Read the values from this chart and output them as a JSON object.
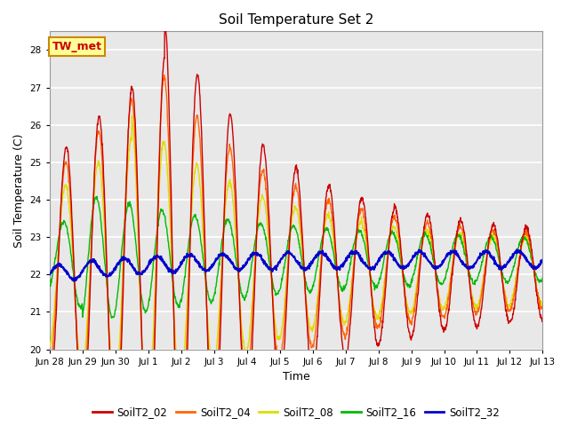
{
  "title": "Soil Temperature Set 2",
  "xlabel": "Time",
  "ylabel": "Soil Temperature (C)",
  "ylim": [
    20.0,
    28.5
  ],
  "yticks": [
    20.0,
    21.0,
    22.0,
    23.0,
    24.0,
    25.0,
    26.0,
    27.0,
    28.0
  ],
  "bg_color": "#e8e8e8",
  "grid_color": "#ffffff",
  "series_colors": {
    "SoilT2_02": "#cc0000",
    "SoilT2_04": "#ff6600",
    "SoilT2_08": "#dddd00",
    "SoilT2_16": "#00bb00",
    "SoilT2_32": "#0000cc"
  },
  "annotation_text": "TW_met",
  "annotation_bg": "#ffff99",
  "annotation_border": "#cc8800",
  "xtick_labels": [
    "Jun 28",
    "Jun 29",
    "Jun 30",
    "Jul 1",
    "Jul 2",
    "Jul 3",
    "Jul 4",
    "Jul 5",
    "Jul 6",
    "Jul 7",
    "Jul 8",
    "Jul 9",
    "Jul 10",
    "Jul 11",
    "Jul 12",
    "Jul 13"
  ],
  "xtick_positions": [
    0,
    1,
    2,
    3,
    4,
    5,
    6,
    7,
    8,
    9,
    10,
    11,
    12,
    13,
    14,
    15
  ]
}
